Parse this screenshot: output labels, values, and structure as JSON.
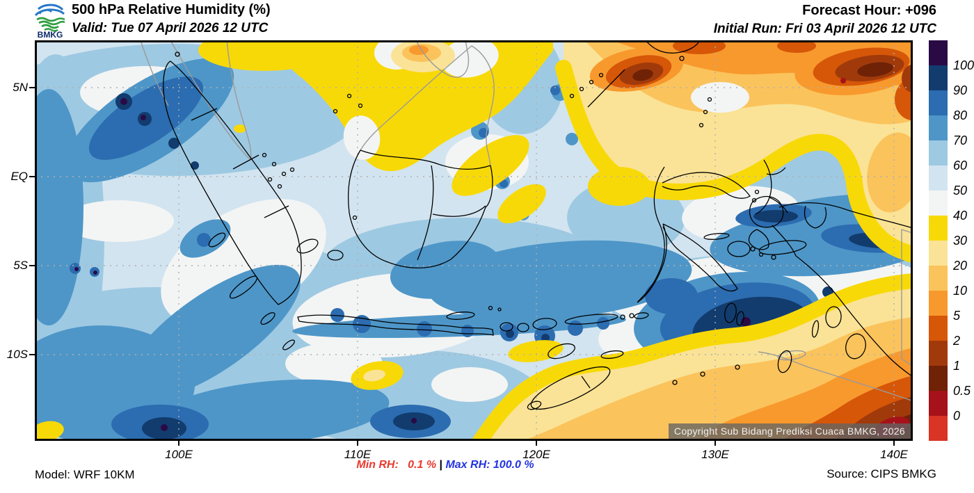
{
  "header": {
    "logo_text": "BMKG",
    "title": "500 hPa Relative Humidity (%)",
    "valid": "Valid: Tue 07 April 2026 12 UTC",
    "forecast_hour": "Forecast Hour: +096",
    "initial_run": "Initial Run: Fri 03 April 2026 12 UTC"
  },
  "map": {
    "lat_ticks": [
      "5N",
      "EQ",
      "5S",
      "10S"
    ],
    "lon_ticks": [
      "100E",
      "110E",
      "120E",
      "130E",
      "140E"
    ],
    "copyright": "Copyright Sub Bidang Prediksi Cuaca BMKG, 2026"
  },
  "colorbar": {
    "unit": "%",
    "levels_top_to_bottom": [
      "100",
      "90",
      "80",
      "70",
      "60",
      "50",
      "40",
      "30",
      "20",
      "10",
      "5",
      "2",
      "1",
      "0.5",
      "0"
    ],
    "colors_top_to_bottom": [
      "#2a0a45",
      "#123c6e",
      "#2c6cb0",
      "#4e96c8",
      "#9ec9e2",
      "#d2e4f0",
      "#f3f5f4",
      "#f8d908",
      "#fae396",
      "#fbc35c",
      "#f8992d",
      "#d65708",
      "#a13a0b",
      "#6f2206",
      "#a51219",
      "#d93425"
    ]
  },
  "footer": {
    "model": "Model: WRF 10KM",
    "min_rh": "Min RH:   0.1 %",
    "separator": " | ",
    "max_rh": "Max RH: 100.0 %",
    "source": "Source: CIPS BMKG",
    "min_color": "#e8392e",
    "max_color": "#2333e0"
  }
}
